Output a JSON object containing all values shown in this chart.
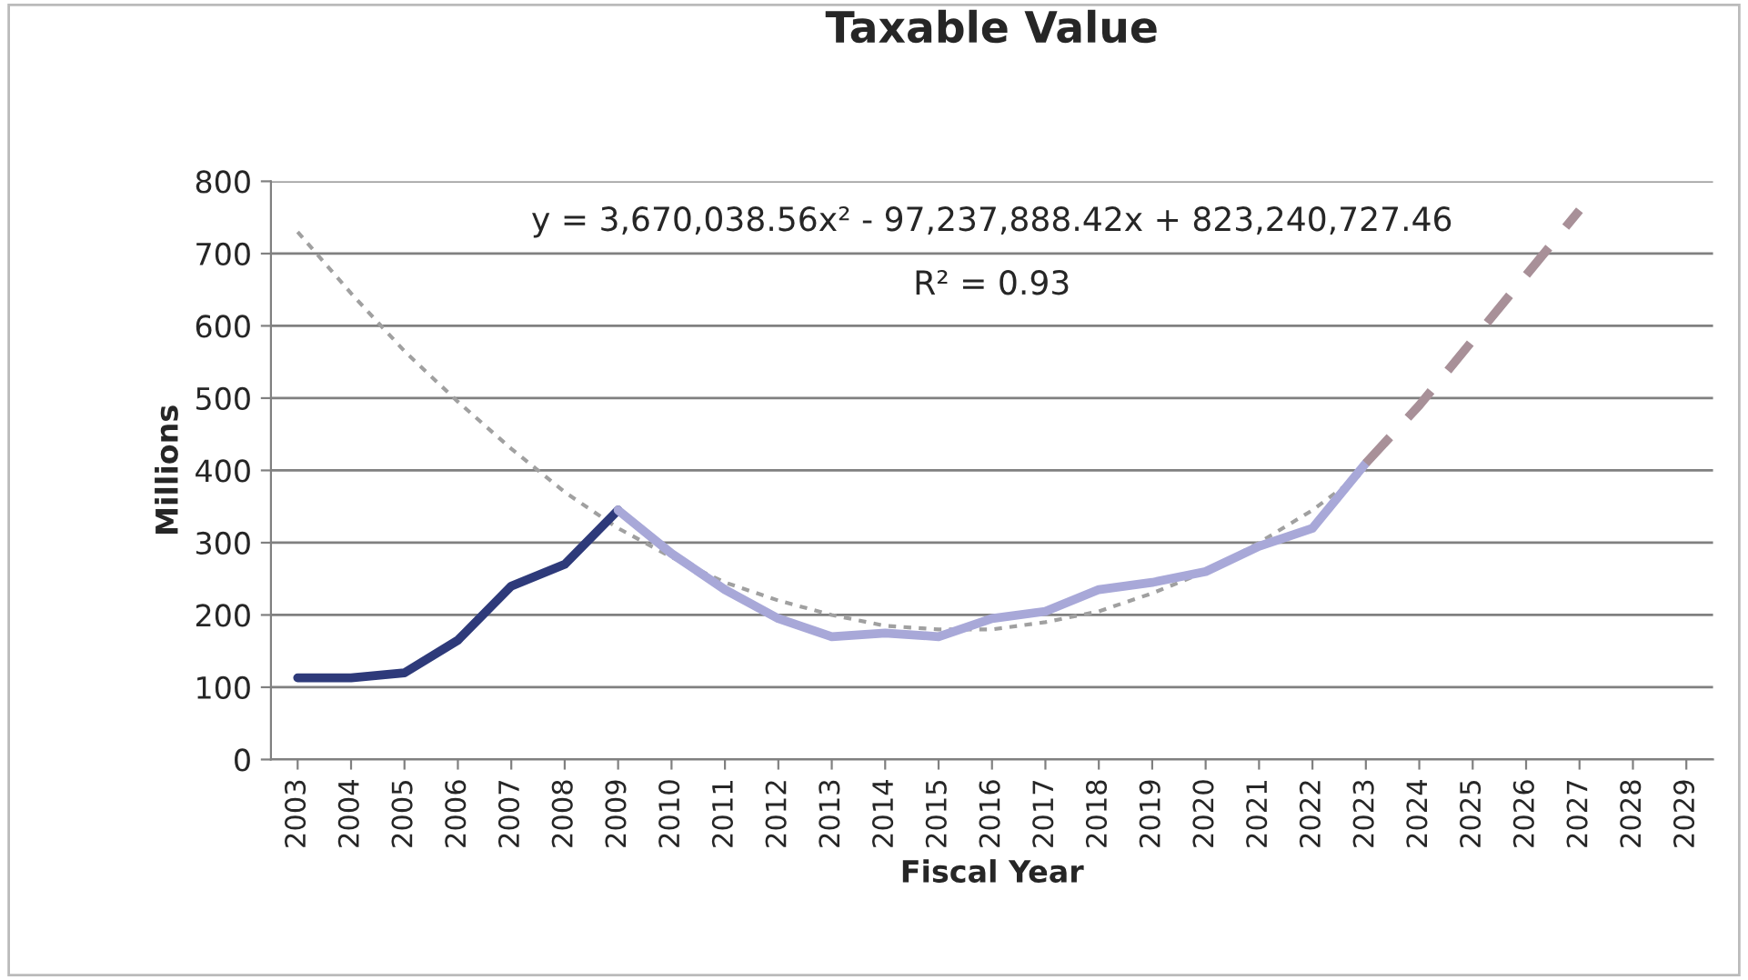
{
  "chart_data": {
    "type": "line",
    "title": "Taxable Value",
    "xlabel": "Fiscal Year",
    "ylabel": "Millions",
    "categories": [
      "2003",
      "2004",
      "2005",
      "2006",
      "2007",
      "2008",
      "2009",
      "2010",
      "2011",
      "2012",
      "2013",
      "2014",
      "2015",
      "2016",
      "2017",
      "2018",
      "2019",
      "2020",
      "2021",
      "2022",
      "2023",
      "2024",
      "2025",
      "2026",
      "2027",
      "2028",
      "2029"
    ],
    "series": [
      {
        "color": "#a0a0a0",
        "line_style": "dotted",
        "values": [
          730,
          645,
          565,
          495,
          430,
          370,
          320,
          280,
          245,
          220,
          200,
          185,
          180,
          180,
          190,
          205,
          230,
          260,
          300,
          345,
          400,
          null,
          null,
          null,
          null,
          null,
          null
        ]
      },
      {
        "color": "#2e3a7a",
        "line_style": "solid",
        "values": [
          113,
          113,
          120,
          165,
          240,
          270,
          345,
          null,
          null,
          null,
          null,
          null,
          null,
          null,
          null,
          null,
          null,
          null,
          null,
          null,
          null,
          null,
          null,
          null,
          null,
          null,
          null
        ]
      },
      {
        "color": "#a8a8d8",
        "line_style": "solid",
        "values": [
          null,
          null,
          null,
          null,
          null,
          null,
          345,
          285,
          235,
          195,
          170,
          175,
          170,
          195,
          205,
          235,
          245,
          260,
          295,
          320,
          410,
          null,
          null,
          null,
          null,
          null,
          null
        ]
      },
      {
        "color": "#a89098",
        "line_style": "dashed",
        "values": [
          null,
          null,
          null,
          null,
          null,
          null,
          null,
          null,
          null,
          null,
          null,
          null,
          null,
          null,
          null,
          null,
          null,
          null,
          null,
          null,
          410,
          490,
          580,
          670,
          760,
          null,
          null
        ]
      }
    ],
    "ylim": [
      0,
      800
    ],
    "yticks": [
      0,
      100,
      200,
      300,
      400,
      500,
      600,
      700,
      800
    ],
    "grid": "y",
    "legend": false,
    "marker": "none",
    "annotations": [
      "y = 3,670,038.56x² - 97,237,888.42x + 823,240,727.46",
      "R² = 0.93"
    ]
  }
}
